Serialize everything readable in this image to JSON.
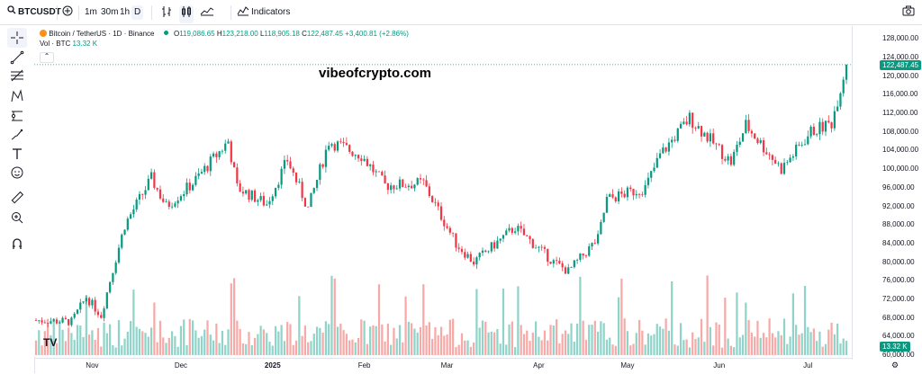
{
  "toolbar": {
    "symbol": "BTCUSDT",
    "intervals": [
      "1m",
      "30m",
      "1h",
      "D"
    ],
    "indicators_label": "Indicators"
  },
  "legend": {
    "title": "Bitcoin / TetherUS · 1D · Binance",
    "open_label": "O",
    "open": "119,086.65",
    "high_label": "H",
    "high": "123,218.00",
    "low_label": "L",
    "low": "118,905.18",
    "close_label": "C",
    "close": "122,487.45",
    "change": "+3,400.81 (+2.86%)",
    "vol_label": "Vol · BTC",
    "vol_value": "13.32 K"
  },
  "watermark": "vibeofcrypto.com",
  "price_axis": {
    "ticks": [
      "128,000.00",
      "124,000.00",
      "120,000.00",
      "116,000.00",
      "112,000.00",
      "108,000.00",
      "104,000.00",
      "100,000.00",
      "96,000.00",
      "92,000.00",
      "88,000.00",
      "84,000.00",
      "80,000.00",
      "76,000.00",
      "72,000.00",
      "68,000.00",
      "64,000.00",
      "60,000.00"
    ],
    "last_price": "122,487.45",
    "last_volume": "13.32 K"
  },
  "time_axis": {
    "ticks": [
      "Nov",
      "Dec",
      "2025",
      "Feb",
      "Mar",
      "Apr",
      "May",
      "Jun",
      "Jul"
    ]
  },
  "colors": {
    "up": "#089981",
    "down": "#f23645",
    "up_vol": "#8fd3c9",
    "down_vol": "#f7a9a7"
  },
  "chart_data": {
    "type": "candlestick",
    "title": "Bitcoin / TetherUS · 1D · Binance",
    "y_unit": "USDT",
    "ylim": [
      60000,
      130000
    ],
    "x_range": [
      "2024-10-13",
      "2025-07-14"
    ],
    "series": [
      {
        "anchors": [
          {
            "x": "2024-10-13",
            "y": 67500
          },
          {
            "x": "2024-10-25",
            "y": 67200
          },
          {
            "x": "2024-10-30",
            "y": 72500
          },
          {
            "x": "2024-11-04",
            "y": 68500
          },
          {
            "x": "2024-11-07",
            "y": 76000
          },
          {
            "x": "2024-11-12",
            "y": 88000
          },
          {
            "x": "2024-11-21",
            "y": 98000
          },
          {
            "x": "2024-11-26",
            "y": 92000
          },
          {
            "x": "2024-12-05",
            "y": 97000
          },
          {
            "x": "2024-12-17",
            "y": 106000
          },
          {
            "x": "2024-12-20",
            "y": 96000
          },
          {
            "x": "2024-12-30",
            "y": 92500
          },
          {
            "x": "2025-01-06",
            "y": 102000
          },
          {
            "x": "2025-01-13",
            "y": 91500
          },
          {
            "x": "2025-01-20",
            "y": 106000
          },
          {
            "x": "2025-01-31",
            "y": 103000
          },
          {
            "x": "2025-02-08",
            "y": 96500
          },
          {
            "x": "2025-02-21",
            "y": 97000
          },
          {
            "x": "2025-03-04",
            "y": 84000
          },
          {
            "x": "2025-03-10",
            "y": 80000
          },
          {
            "x": "2025-03-24",
            "y": 87500
          },
          {
            "x": "2025-04-06",
            "y": 80000
          },
          {
            "x": "2025-04-11",
            "y": 78000
          },
          {
            "x": "2025-04-21",
            "y": 85000
          },
          {
            "x": "2025-04-24",
            "y": 93500
          },
          {
            "x": "2025-05-07",
            "y": 96000
          },
          {
            "x": "2025-05-12",
            "y": 103000
          },
          {
            "x": "2025-05-22",
            "y": 111000
          },
          {
            "x": "2025-06-05",
            "y": 101500
          },
          {
            "x": "2025-06-10",
            "y": 109500
          },
          {
            "x": "2025-06-22",
            "y": 100000
          },
          {
            "x": "2025-07-02",
            "y": 108000
          },
          {
            "x": "2025-07-09",
            "y": 110000
          },
          {
            "x": "2025-07-14",
            "y": 122487
          }
        ]
      }
    ]
  }
}
